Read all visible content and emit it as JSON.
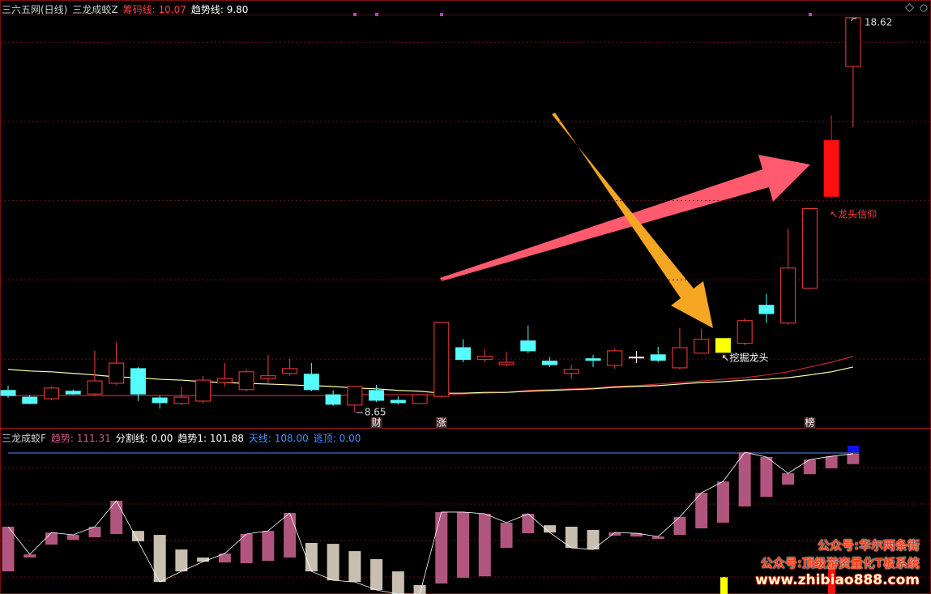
{
  "chart_data": [
    {
      "type": "candlestick",
      "title": "三六五网(日线)",
      "indicator": "三龙成蛟Z",
      "header_items": [
        {
          "label": "筹码线:",
          "value": "10.07",
          "color": "#ff3c3c"
        },
        {
          "label": "趋势线:",
          "value": "9.80",
          "color": "#ffffff"
        }
      ],
      "open": [
        9.21,
        9.04,
        9.0,
        9.19,
        9.12,
        9.39,
        9.76,
        9.02,
        8.88,
        8.94,
        9.41,
        9.23,
        9.51,
        9.64,
        9.62,
        9.1,
        8.84,
        9.21,
        8.96,
        8.88,
        9.06,
        10.29,
        9.99,
        9.86,
        10.46,
        9.95,
        9.64,
        10.01,
        9.84,
        10.05,
        10.11,
        9.78,
        10.15,
        10.17,
        10.4,
        11.36,
        10.91,
        11.79,
        14.11,
        17.39
      ],
      "high": [
        9.33,
        9.1,
        9.31,
        9.23,
        10.21,
        10.42,
        9.8,
        9.08,
        9.31,
        9.58,
        9.9,
        9.74,
        10.11,
        10.01,
        9.9,
        9.21,
        9.31,
        9.35,
        9.06,
        9.1,
        10.93,
        10.5,
        10.25,
        10.19,
        10.85,
        10.05,
        9.86,
        10.11,
        10.27,
        10.21,
        10.31,
        10.79,
        10.77,
        10.52,
        11.03,
        11.65,
        13.29,
        13.8,
        16.16,
        18.62
      ],
      "low": [
        9.02,
        8.86,
        8.96,
        9.1,
        9.08,
        9.35,
        8.94,
        8.75,
        8.84,
        8.88,
        9.31,
        9.19,
        9.39,
        9.58,
        9.19,
        8.82,
        8.65,
        8.92,
        8.86,
        8.88,
        9.02,
        9.92,
        9.92,
        9.82,
        10.15,
        9.8,
        9.49,
        9.8,
        9.76,
        9.9,
        9.92,
        9.74,
        10.15,
        10.17,
        10.35,
        10.91,
        10.87,
        11.77,
        14.07,
        15.85
      ],
      "close": [
        9.08,
        8.88,
        9.27,
        9.12,
        9.45,
        9.9,
        9.12,
        8.9,
        9.04,
        9.47,
        9.51,
        9.68,
        9.58,
        9.76,
        9.23,
        8.86,
        9.31,
        8.96,
        8.9,
        9.1,
        10.93,
        9.99,
        10.07,
        9.92,
        10.21,
        9.86,
        9.74,
        9.97,
        10.21,
        10.03,
        9.97,
        10.29,
        10.5,
        10.52,
        10.97,
        11.15,
        12.3,
        13.8,
        15.52,
        18.62
      ],
      "candle_colors": [
        "#54fcfc",
        "#54fcfc",
        "#ff3c3c",
        "#54fcfc",
        "#ff3c3c",
        "#ff3c3c",
        "#54fcfc",
        "#54fcfc",
        "#ff3c3c",
        "#ff3c3c",
        "#ff3c3c",
        "#ff3c3c",
        "#ff3c3c",
        "#ff3c3c",
        "#54fcfc",
        "#54fcfc",
        "#ff3c3c",
        "#54fcfc",
        "#54fcfc",
        "#ff3c3c",
        "#ff3c3c",
        "#54fcfc",
        "#ff3c3c",
        "#ff3c3c",
        "#54fcfc",
        "#54fcfc",
        "#ff3c3c",
        "#54fcfc",
        "#ff3c3c",
        "#ffffff",
        "#54fcfc",
        "#ff3c3c",
        "#ff3c3c",
        "#ffff00",
        "#ff3c3c",
        "#54fcfc",
        "#ff3c3c",
        "#ff3c3c",
        "#ff1010",
        "#ff3c3c"
      ],
      "candle_filled": [
        true,
        true,
        false,
        true,
        false,
        false,
        true,
        true,
        false,
        false,
        false,
        false,
        false,
        false,
        true,
        true,
        false,
        true,
        true,
        false,
        false,
        true,
        false,
        false,
        true,
        true,
        false,
        true,
        false,
        true,
        true,
        false,
        false,
        true,
        false,
        true,
        false,
        false,
        true,
        false
      ],
      "series": [
        {
          "name": "筹码线",
          "color": "#c8282d",
          "values": [
            9.08,
            9.08,
            9.08,
            9.08,
            9.08,
            9.08,
            9.08,
            9.08,
            9.08,
            9.08,
            9.08,
            9.08,
            9.08,
            9.08,
            9.08,
            9.08,
            9.1,
            9.1,
            9.1,
            9.1,
            9.1,
            9.12,
            9.14,
            9.16,
            9.21,
            9.23,
            9.25,
            9.27,
            9.31,
            9.33,
            9.37,
            9.41,
            9.45,
            9.49,
            9.53,
            9.6,
            9.68,
            9.8,
            9.92,
            10.07
          ]
        },
        {
          "name": "趋势线",
          "color": "#ffffb0",
          "values": [
            9.74,
            9.7,
            9.68,
            9.64,
            9.6,
            9.55,
            9.53,
            9.49,
            9.47,
            9.43,
            9.41,
            9.39,
            9.37,
            9.35,
            9.33,
            9.31,
            9.27,
            9.25,
            9.21,
            9.19,
            9.14,
            9.14,
            9.16,
            9.16,
            9.19,
            9.21,
            9.23,
            9.25,
            9.29,
            9.31,
            9.33,
            9.37,
            9.41,
            9.43,
            9.47,
            9.49,
            9.53,
            9.6,
            9.68,
            9.8
          ]
        }
      ],
      "high_label": "18.62",
      "low_label": "8.65",
      "annotations": [
        "↖龙头信仰",
        "↖挖掘龙头"
      ],
      "markers": [
        "财",
        "涨",
        "榜"
      ],
      "ylim": [
        8.53,
        18.7
      ],
      "yticks": [
        10,
        12,
        14,
        16,
        18
      ],
      "show_tick_labels": false,
      "grid": true
    },
    {
      "type": "floating-bar",
      "title": "三龙成蛟F",
      "header_items": [
        {
          "label": "趋势:",
          "value": "111.31",
          "color": "#d05a8c"
        },
        {
          "label": "分割线:",
          "value": "0.00",
          "color": "#ffffff"
        },
        {
          "label": "趋势1:",
          "value": "101.88",
          "color": "#ffffff"
        },
        {
          "label": "天线:",
          "value": "108.00",
          "color": "#4a8cff"
        },
        {
          "label": "逃顶:",
          "value": "0.00",
          "color": "#4a8cff"
        }
      ],
      "start": [
        43.1,
        50.7,
        57.8,
        60.4,
        61.8,
        63.6,
        65.3,
        63.1,
        55.1,
        50.7,
        48.0,
        47.6,
        48.9,
        50.7,
        58.7,
        58.2,
        54.2,
        49.8,
        43.1,
        35.6,
        36.4,
        39.6,
        40.4,
        56.0,
        64.0,
        68.4,
        67.6,
        65.8,
        62.7,
        62.2,
        60.9,
        63.1,
        66.7,
        69.8,
        78.7,
        84.0,
        90.7,
        96.4,
        99.6,
        101.88
      ],
      "values": [
        67.6,
        52.4,
        64.4,
        63.1,
        67.6,
        81.8,
        59.6,
        37.3,
        43.1,
        48.4,
        52.9,
        63.6,
        65.3,
        75.1,
        43.1,
        38.2,
        37.3,
        32.9,
        30.7,
        30.7,
        75.6,
        75.6,
        74.7,
        69.8,
        74.7,
        64.4,
        56.0,
        55.1,
        64.4,
        64.0,
        62.2,
        72.9,
        86.2,
        92.4,
        108.4,
        105.8,
        96.9,
        104.4,
        106.2,
        107.6
      ],
      "rise_color": "#b0567e",
      "fall_color": "#c8bfb0",
      "line_color": "#ffffff",
      "ref_line": 108,
      "ref_color": "#4a8cff",
      "ylim": [
        30.7,
        120.9
      ],
      "yticks": [
        100,
        80,
        60,
        40
      ],
      "show_tick_labels": false,
      "grid": true
    }
  ],
  "watermark": [
    "公众号:华尔两条街",
    "公众号:顶级游资量化T板系统",
    "www.zhibiao888.com"
  ]
}
